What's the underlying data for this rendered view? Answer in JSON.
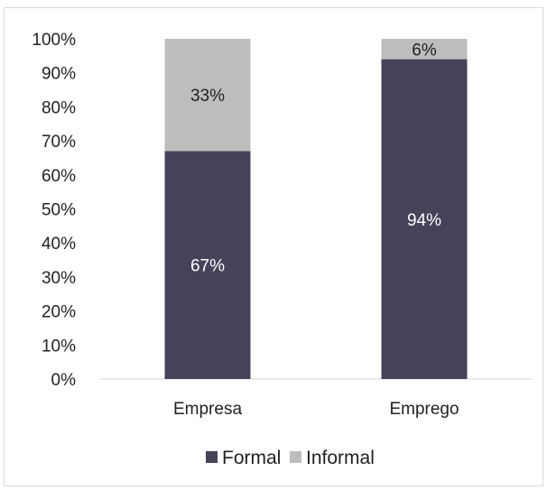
{
  "chart_data": {
    "type": "bar",
    "stacked": true,
    "categories": [
      "Empresa",
      "Emprego"
    ],
    "series": [
      {
        "name": "Formal",
        "values": [
          67,
          94
        ],
        "labels": [
          "67%",
          "94%"
        ],
        "color": "#44435a",
        "label_color": "#ffffff"
      },
      {
        "name": "Informal",
        "values": [
          33,
          6
        ],
        "labels": [
          "33%",
          "6%"
        ],
        "color": "#bdbdbd",
        "label_color": "#222222"
      }
    ],
    "y_ticks": [
      "0%",
      "10%",
      "20%",
      "30%",
      "40%",
      "50%",
      "60%",
      "70%",
      "80%",
      "90%",
      "100%"
    ],
    "ylim": [
      0,
      100
    ],
    "grid": false,
    "legend_position": "bottom",
    "title": "",
    "xlabel": "",
    "ylabel": ""
  }
}
